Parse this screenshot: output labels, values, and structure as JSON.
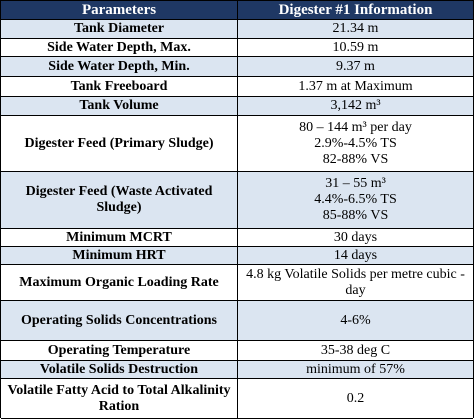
{
  "table": {
    "headers": [
      "Parameters",
      "Digester #1 Information"
    ],
    "rows": [
      [
        "Tank Diameter",
        [
          "21.34 m"
        ]
      ],
      [
        "Side Water Depth, Max.",
        [
          "10.59 m"
        ]
      ],
      [
        "Side Water Depth, Min.",
        [
          "9.37 m"
        ]
      ],
      [
        "Tank Freeboard",
        [
          "1.37 m at Maximum"
        ]
      ],
      [
        "Tank Volume",
        [
          "3,142 m³"
        ]
      ],
      [
        "Digester Feed (Primary Sludge)",
        [
          "80 – 144 m³ per day",
          "2.9%-4.5% TS",
          "82-88% VS"
        ]
      ],
      [
        "Digester Feed (Waste Activated Sludge)",
        [
          "31 – 55 m³",
          "4.4%-6.5% TS",
          "85-88% VS"
        ]
      ],
      [
        "Minimum MCRT",
        [
          "30 days"
        ]
      ],
      [
        "Minimum HRT",
        [
          "14 days"
        ]
      ],
      [
        "Maximum Organic Loading Rate",
        [
          "4.8 kg Volatile Solids per metre cubic - day"
        ]
      ],
      [
        "Operating Solids Concentrations",
        [
          "4-6%"
        ]
      ],
      [
        "Operating Temperature",
        [
          "35-38 deg C"
        ]
      ],
      [
        "Volatile Solids Destruction",
        [
          "minimum of 57%"
        ]
      ],
      [
        "Volatile Fatty Acid to Total Alkalinity Ration",
        [
          "0.2"
        ]
      ]
    ]
  }
}
